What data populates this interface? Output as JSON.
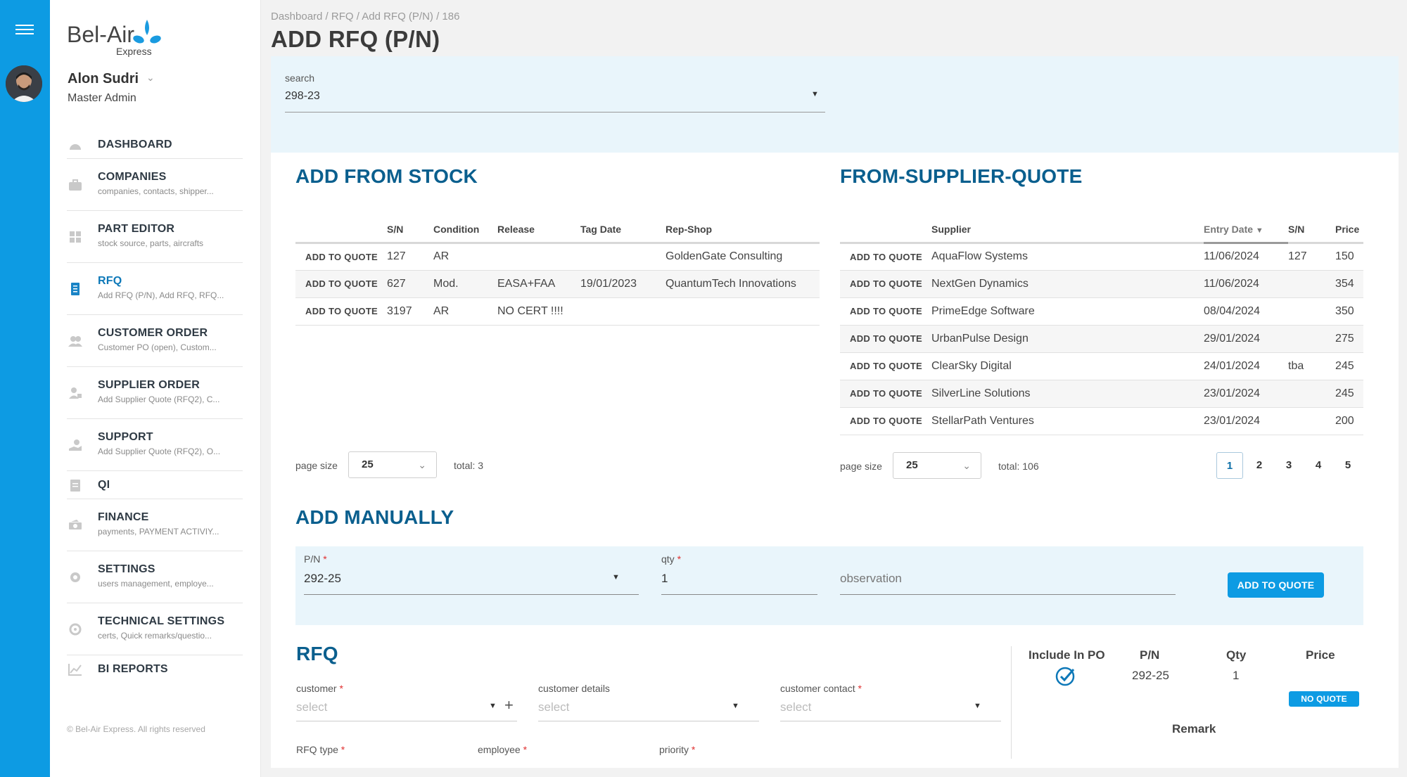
{
  "brand": {
    "logo_text": "Bel-Air",
    "logo_sub": "Express"
  },
  "user": {
    "name": "Alon Sudri",
    "role": "Master Admin"
  },
  "nav": [
    {
      "label": "DASHBOARD",
      "sub": "",
      "icon": "dashboard-icon"
    },
    {
      "label": "COMPANIES",
      "sub": "companies, contacts, shipper...",
      "icon": "briefcase-icon"
    },
    {
      "label": "PART EDITOR",
      "sub": "stock source, parts, aircrafts",
      "icon": "grid-icon"
    },
    {
      "label": "RFQ",
      "sub": "Add RFQ (P/N), Add RFQ, RFQ...",
      "icon": "document-icon"
    },
    {
      "label": "CUSTOMER ORDER",
      "sub": "Customer PO (open), Custom...",
      "icon": "users-icon"
    },
    {
      "label": "SUPPLIER ORDER",
      "sub": "Add Supplier Quote (RFQ2), C...",
      "icon": "person-box-icon"
    },
    {
      "label": "SUPPORT",
      "sub": "Add Supplier Quote (RFQ2), O...",
      "icon": "support-icon"
    },
    {
      "label": "QI",
      "sub": "",
      "icon": "clipboard-icon"
    },
    {
      "label": "FINANCE",
      "sub": "payments, PAYMENT ACTIVIY...",
      "icon": "money-icon"
    },
    {
      "label": "SETTINGS",
      "sub": "users management, employe...",
      "icon": "gear-icon"
    },
    {
      "label": "TECHNICAL SETTINGS",
      "sub": "certs, Quick remarks/questio...",
      "icon": "wrench-gear-icon"
    },
    {
      "label": "BI REPORTS",
      "sub": "",
      "icon": "chart-icon"
    }
  ],
  "copyright": "© Bel-Air Express. All rights reserved",
  "breadcrumb": "Dashboard / RFQ / Add RFQ (P/N) / 186",
  "page_title": "ADD RFQ (P/N)",
  "search": {
    "label": "search",
    "value": "298-23"
  },
  "stock": {
    "title": "ADD FROM STOCK",
    "headers": [
      "",
      "S/N",
      "Condition",
      "Release",
      "Tag Date",
      "Rep-Shop"
    ],
    "action_label": "ADD TO QUOTE",
    "rows": [
      {
        "sn": "127",
        "condition": "AR",
        "release": "",
        "tag_date": "",
        "rep_shop": "GoldenGate Consulting"
      },
      {
        "sn": "627",
        "condition": "Mod.",
        "release": "EASA+FAA",
        "tag_date": "19/01/2023",
        "rep_shop": "QuantumTech Innovations"
      },
      {
        "sn": "3197",
        "condition": "AR",
        "release": "NO CERT !!!!",
        "tag_date": "",
        "rep_shop": ""
      }
    ],
    "page_size_label": "page size",
    "page_size": "25",
    "total": "total: 3"
  },
  "supplier_quote": {
    "title": "FROM-SUPPLIER-QUOTE",
    "headers": [
      "",
      "Supplier",
      "Entry Date",
      "S/N",
      "Price"
    ],
    "action_label": "ADD TO QUOTE",
    "rows": [
      {
        "supplier": "AquaFlow Systems",
        "entry_date": "11/06/2024",
        "sn": "127",
        "price": "150"
      },
      {
        "supplier": "NextGen Dynamics",
        "entry_date": "11/06/2024",
        "sn": "",
        "price": "354"
      },
      {
        "supplier": "PrimeEdge Software",
        "entry_date": "08/04/2024",
        "sn": "",
        "price": "350"
      },
      {
        "supplier": "UrbanPulse Design",
        "entry_date": "29/01/2024",
        "sn": "",
        "price": "275"
      },
      {
        "supplier": "ClearSky Digital",
        "entry_date": "24/01/2024",
        "sn": "tba",
        "price": "245"
      },
      {
        "supplier": "SilverLine Solutions",
        "entry_date": "23/01/2024",
        "sn": "",
        "price": "245"
      },
      {
        "supplier": "StellarPath Ventures",
        "entry_date": "23/01/2024",
        "sn": "",
        "price": "200"
      }
    ],
    "page_size_label": "page size",
    "page_size": "25",
    "total": "total: 106",
    "pages": [
      "1",
      "2",
      "3",
      "4",
      "5"
    ],
    "active_page": "1"
  },
  "manual": {
    "title": "ADD MANUALLY",
    "pn_label": "P/N",
    "pn_value": "292-25",
    "qty_label": "qty",
    "qty_value": "1",
    "observation_placeholder": "observation",
    "button": "ADD TO QUOTE"
  },
  "rfq": {
    "title": "RFQ",
    "customer_label": "customer",
    "customer_placeholder": "select",
    "customer_details_label": "customer details",
    "customer_details_placeholder": "select",
    "customer_contact_label": "customer contact",
    "customer_contact_placeholder": "select",
    "rfq_type_label": "RFQ type",
    "employee_label": "employee",
    "priority_label": "priority",
    "summary_headers": {
      "include": "Include In PO",
      "pn": "P/N",
      "qty": "Qty",
      "price": "Price"
    },
    "summary_row": {
      "pn": "292-25",
      "qty": "1",
      "price_badge": "NO QUOTE"
    },
    "remark_label": "Remark"
  },
  "colors": {
    "accent": "#0d9be3",
    "title_blue": "#0a5f8e",
    "link_blue": "#0d6fa8",
    "band": "#e9f5fb"
  }
}
